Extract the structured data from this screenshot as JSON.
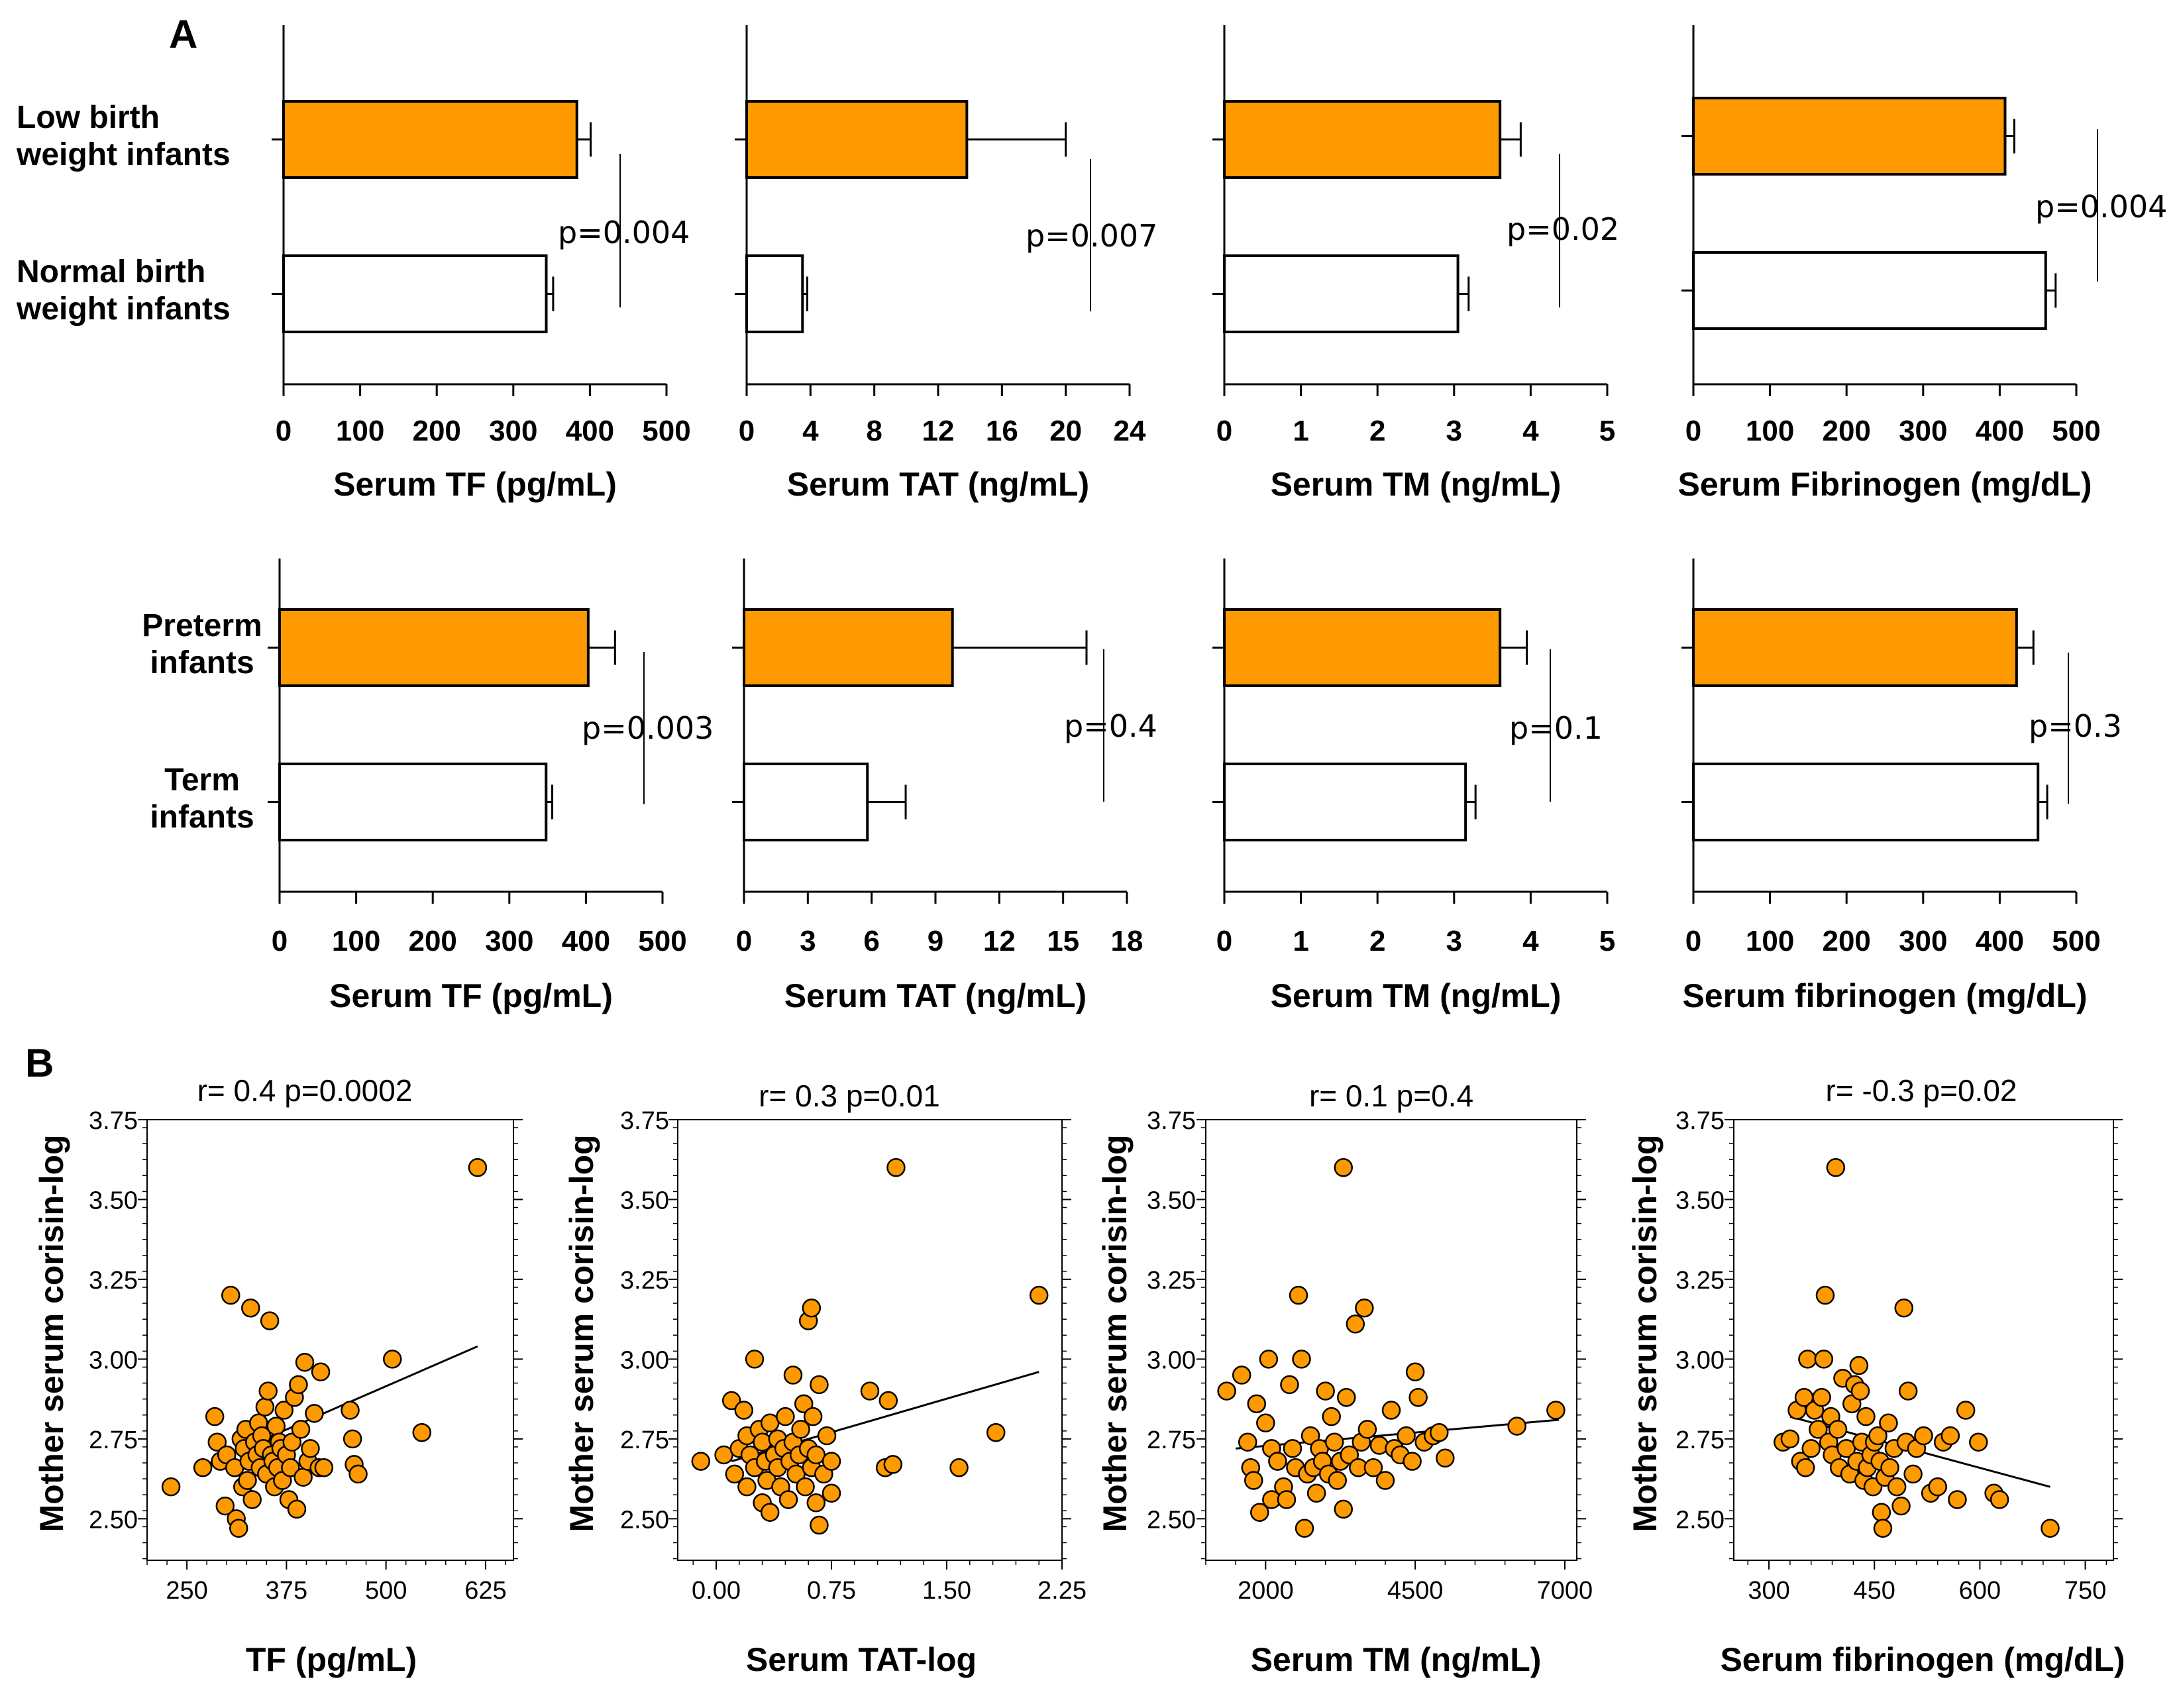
{
  "colors": {
    "orange": "#ff9900",
    "stroke": "#000000",
    "fill_white": "#ffffff"
  },
  "panels": {
    "a_label": "A",
    "b_label": "B"
  },
  "chart_data": [
    {
      "type": "bar",
      "orientation": "horizontal",
      "categories": [
        "Low birth\nweight infants",
        "Normal birth\nweight infants"
      ],
      "values": [
        383,
        343
      ],
      "errors": [
        18,
        9
      ],
      "xlabel": "Serum TF (pg/mL)",
      "xlim": [
        0,
        500
      ],
      "xticks": [
        0,
        100,
        200,
        300,
        400,
        500
      ],
      "ptext": "p=0.004"
    },
    {
      "type": "bar",
      "orientation": "horizontal",
      "categories": [
        "Low birth\nweight infants",
        "Normal birth\nweight infants"
      ],
      "values": [
        13.8,
        3.5
      ],
      "errors": [
        6.2,
        0.3
      ],
      "xlabel": "Serum TAT (ng/mL)",
      "xlim": [
        0,
        24
      ],
      "xticks": [
        0,
        4,
        8,
        12,
        16,
        20,
        24
      ],
      "ptext": "p=0.007"
    },
    {
      "type": "bar",
      "orientation": "horizontal",
      "categories": [
        "Low birth\nweight infants",
        "Normal birth\nweight infants"
      ],
      "values": [
        3.6,
        3.05
      ],
      "errors": [
        0.27,
        0.14
      ],
      "xlabel": "Serum TM (ng/mL)",
      "xlim": [
        0,
        5
      ],
      "xticks": [
        0,
        1,
        2,
        3,
        4,
        5
      ],
      "ptext": "p=0.02"
    },
    {
      "type": "bar",
      "orientation": "horizontal",
      "categories": [
        "Low birth\nweight infants",
        "Normal birth\nweight infants"
      ],
      "values": [
        407,
        460
      ],
      "errors": [
        12,
        13
      ],
      "xlabel": "Serum Fibrinogen (mg/dL)",
      "xlim": [
        0,
        500
      ],
      "xticks": [
        0,
        100,
        200,
        300,
        400,
        500
      ],
      "ptext": "p=0.004"
    },
    {
      "type": "bar",
      "orientation": "horizontal",
      "categories": [
        "Preterm\ninfants",
        "Term\ninfants"
      ],
      "values": [
        403,
        348
      ],
      "errors": [
        35,
        8
      ],
      "xlabel": "Serum TF (pg/mL)",
      "xlim": [
        0,
        500
      ],
      "xticks": [
        0,
        100,
        200,
        300,
        400,
        500
      ],
      "ptext": "p=0.003"
    },
    {
      "type": "bar",
      "orientation": "horizontal",
      "categories": [
        "Preterm\ninfants",
        "Term\ninfants"
      ],
      "values": [
        9.8,
        5.8
      ],
      "errors": [
        6.3,
        1.8
      ],
      "xlabel": "Serum TAT (ng/mL)",
      "xlim": [
        0,
        18
      ],
      "xticks": [
        0,
        3,
        6,
        9,
        12,
        15,
        18
      ],
      "ptext": "p=0.4"
    },
    {
      "type": "bar",
      "orientation": "horizontal",
      "categories": [
        "Preterm\ninfants",
        "Term\ninfants"
      ],
      "values": [
        3.6,
        3.15
      ],
      "errors": [
        0.35,
        0.13
      ],
      "xlabel": "Serum TM (ng/mL)",
      "xlim": [
        0,
        5
      ],
      "xticks": [
        0,
        1,
        2,
        3,
        4,
        5
      ],
      "ptext": "p=0.1"
    },
    {
      "type": "bar",
      "orientation": "horizontal",
      "categories": [
        "Preterm\ninfants",
        "Term\ninfants"
      ],
      "values": [
        422,
        450
      ],
      "errors": [
        22,
        12
      ],
      "xlabel": "Serum fibrinogen (mg/dL)",
      "xlim": [
        0,
        500
      ],
      "xticks": [
        0,
        100,
        200,
        300,
        400,
        500
      ],
      "ptext": "p=0.3"
    },
    {
      "type": "scatter",
      "title": "r= 0.4  p=0.0002",
      "xlabel": "TF (pg/mL)",
      "ylabel": "Mother serum corisin-log",
      "xlim": [
        200,
        660
      ],
      "ylim": [
        2.37,
        3.75
      ],
      "xticks": [
        250,
        375,
        500,
        625
      ],
      "xticklabels": [
        "250",
        "375",
        "500",
        "625"
      ],
      "yticks": [
        2.5,
        2.75,
        3.0,
        3.25,
        3.5,
        3.75
      ],
      "yticklabels": [
        "2.50",
        "2.75",
        "3.00",
        "3.25",
        "3.50",
        "3.75"
      ],
      "trend": [
        [
          265,
          2.66
        ],
        [
          615,
          3.04
        ]
      ],
      "points": [
        [
          230,
          2.6
        ],
        [
          270,
          2.66
        ],
        [
          285,
          2.82
        ],
        [
          288,
          2.74
        ],
        [
          292,
          2.68
        ],
        [
          298,
          2.54
        ],
        [
          300,
          2.7
        ],
        [
          305,
          3.2
        ],
        [
          310,
          2.66
        ],
        [
          312,
          2.5
        ],
        [
          315,
          2.47
        ],
        [
          318,
          2.75
        ],
        [
          320,
          2.6
        ],
        [
          322,
          2.72
        ],
        [
          324,
          2.78
        ],
        [
          326,
          2.62
        ],
        [
          328,
          2.68
        ],
        [
          330,
          3.16
        ],
        [
          332,
          2.56
        ],
        [
          335,
          2.74
        ],
        [
          338,
          2.7
        ],
        [
          340,
          2.8
        ],
        [
          342,
          2.66
        ],
        [
          344,
          2.76
        ],
        [
          346,
          2.72
        ],
        [
          348,
          2.85
        ],
        [
          350,
          2.64
        ],
        [
          352,
          2.9
        ],
        [
          354,
          3.12
        ],
        [
          356,
          2.7
        ],
        [
          358,
          2.68
        ],
        [
          360,
          2.6
        ],
        [
          362,
          2.79
        ],
        [
          364,
          2.66
        ],
        [
          366,
          2.74
        ],
        [
          368,
          2.72
        ],
        [
          370,
          2.62
        ],
        [
          372,
          2.84
        ],
        [
          375,
          2.7
        ],
        [
          378,
          2.56
        ],
        [
          380,
          2.66
        ],
        [
          382,
          2.74
        ],
        [
          385,
          2.88
        ],
        [
          388,
          2.53
        ],
        [
          390,
          2.92
        ],
        [
          393,
          2.78
        ],
        [
          396,
          2.63
        ],
        [
          398,
          2.99
        ],
        [
          402,
          2.68
        ],
        [
          405,
          2.72
        ],
        [
          410,
          2.83
        ],
        [
          416,
          2.66
        ],
        [
          418,
          2.96
        ],
        [
          422,
          2.66
        ],
        [
          455,
          2.84
        ],
        [
          458,
          2.75
        ],
        [
          460,
          2.67
        ],
        [
          465,
          2.64
        ],
        [
          508,
          3.0
        ],
        [
          545,
          2.77
        ],
        [
          615,
          3.6
        ]
      ]
    },
    {
      "type": "scatter",
      "title": "r= 0.3  p=0.01",
      "xlabel": "Serum TAT-log",
      "ylabel": "Mother serum corisin-log",
      "xlim": [
        -0.25,
        2.25
      ],
      "ylim": [
        2.37,
        3.75
      ],
      "xticks": [
        0.0,
        0.75,
        1.5,
        2.25
      ],
      "xticklabels": [
        "0.00",
        "0.75",
        "1.50",
        "2.25"
      ],
      "yticks": [
        2.5,
        2.75,
        3.0,
        3.25,
        3.5,
        3.75
      ],
      "yticklabels": [
        "2.50",
        "2.75",
        "3.00",
        "3.25",
        "3.50",
        "3.75"
      ],
      "trend": [
        [
          0.1,
          2.68
        ],
        [
          2.1,
          2.96
        ]
      ],
      "points": [
        [
          -0.1,
          2.68
        ],
        [
          0.05,
          2.7
        ],
        [
          0.1,
          2.87
        ],
        [
          0.12,
          2.64
        ],
        [
          0.15,
          2.72
        ],
        [
          0.18,
          2.84
        ],
        [
          0.2,
          2.76
        ],
        [
          0.2,
          2.6
        ],
        [
          0.22,
          2.7
        ],
        [
          0.25,
          3.0
        ],
        [
          0.25,
          2.66
        ],
        [
          0.28,
          2.78
        ],
        [
          0.3,
          2.55
        ],
        [
          0.3,
          2.74
        ],
        [
          0.32,
          2.68
        ],
        [
          0.33,
          2.62
        ],
        [
          0.35,
          2.52
        ],
        [
          0.35,
          2.8
        ],
        [
          0.38,
          2.7
        ],
        [
          0.4,
          2.66
        ],
        [
          0.4,
          2.75
        ],
        [
          0.42,
          2.6
        ],
        [
          0.44,
          2.72
        ],
        [
          0.45,
          2.82
        ],
        [
          0.47,
          2.56
        ],
        [
          0.48,
          2.68
        ],
        [
          0.5,
          2.74
        ],
        [
          0.5,
          2.95
        ],
        [
          0.52,
          2.64
        ],
        [
          0.54,
          2.7
        ],
        [
          0.55,
          2.78
        ],
        [
          0.57,
          2.86
        ],
        [
          0.58,
          2.6
        ],
        [
          0.6,
          3.12
        ],
        [
          0.6,
          2.72
        ],
        [
          0.62,
          2.66
        ],
        [
          0.62,
          3.16
        ],
        [
          0.63,
          2.82
        ],
        [
          0.65,
          2.55
        ],
        [
          0.65,
          2.7
        ],
        [
          0.67,
          2.92
        ],
        [
          0.67,
          2.48
        ],
        [
          0.7,
          2.64
        ],
        [
          0.72,
          2.76
        ],
        [
          0.75,
          2.68
        ],
        [
          0.75,
          2.58
        ],
        [
          1.0,
          2.9
        ],
        [
          1.1,
          2.66
        ],
        [
          1.12,
          2.87
        ],
        [
          1.15,
          2.67
        ],
        [
          1.17,
          3.6
        ],
        [
          1.58,
          2.66
        ],
        [
          1.82,
          2.77
        ],
        [
          2.1,
          3.2
        ]
      ]
    },
    {
      "type": "scatter",
      "title": "r= 0.1  p=0.4",
      "xlabel": "Serum TM (ng/mL)",
      "ylabel": "Mother serum corisin-log",
      "xlim": [
        1000,
        7200
      ],
      "ylim": [
        2.37,
        3.75
      ],
      "xticks": [
        2000,
        4500,
        7000
      ],
      "xticklabels": [
        "2000",
        "4500",
        "7000"
      ],
      "yticks": [
        2.5,
        2.75,
        3.0,
        3.25,
        3.5,
        3.75
      ],
      "yticklabels": [
        "2.50",
        "2.75",
        "3.00",
        "3.25",
        "3.50",
        "3.75"
      ],
      "trend": [
        [
          1500,
          2.72
        ],
        [
          6900,
          2.81
        ]
      ],
      "points": [
        [
          1350,
          2.9
        ],
        [
          1600,
          2.95
        ],
        [
          1700,
          2.74
        ],
        [
          1750,
          2.66
        ],
        [
          1800,
          2.62
        ],
        [
          1850,
          2.86
        ],
        [
          1900,
          2.52
        ],
        [
          2000,
          2.8
        ],
        [
          2050,
          3.0
        ],
        [
          2100,
          2.72
        ],
        [
          2100,
          2.56
        ],
        [
          2200,
          2.68
        ],
        [
          2300,
          2.6
        ],
        [
          2350,
          2.56
        ],
        [
          2400,
          2.92
        ],
        [
          2450,
          2.72
        ],
        [
          2500,
          2.66
        ],
        [
          2550,
          3.2
        ],
        [
          2600,
          3.0
        ],
        [
          2650,
          2.47
        ],
        [
          2700,
          2.64
        ],
        [
          2750,
          2.76
        ],
        [
          2800,
          2.66
        ],
        [
          2850,
          2.58
        ],
        [
          2900,
          2.72
        ],
        [
          2950,
          2.68
        ],
        [
          3000,
          2.9
        ],
        [
          3050,
          2.64
        ],
        [
          3100,
          2.82
        ],
        [
          3150,
          2.74
        ],
        [
          3200,
          2.62
        ],
        [
          3250,
          2.68
        ],
        [
          3300,
          2.53
        ],
        [
          3300,
          3.6
        ],
        [
          3350,
          2.88
        ],
        [
          3400,
          2.7
        ],
        [
          3500,
          3.11
        ],
        [
          3550,
          2.66
        ],
        [
          3600,
          2.74
        ],
        [
          3650,
          3.16
        ],
        [
          3700,
          2.78
        ],
        [
          3800,
          2.66
        ],
        [
          3900,
          2.73
        ],
        [
          4000,
          2.62
        ],
        [
          4100,
          2.84
        ],
        [
          4150,
          2.72
        ],
        [
          4250,
          2.7
        ],
        [
          4350,
          2.76
        ],
        [
          4450,
          2.68
        ],
        [
          4500,
          2.96
        ],
        [
          4550,
          2.88
        ],
        [
          4650,
          2.74
        ],
        [
          4800,
          2.76
        ],
        [
          4900,
          2.77
        ],
        [
          5000,
          2.69
        ],
        [
          6200,
          2.79
        ],
        [
          6850,
          2.84
        ]
      ]
    },
    {
      "type": "scatter",
      "title": "r= -0.3  p=0.02",
      "xlabel": "Serum fibrinogen (mg/dL)",
      "ylabel": "Mother serum corisin-log",
      "xlim": [
        250,
        790
      ],
      "ylim": [
        2.37,
        3.75
      ],
      "xticks": [
        300,
        450,
        600,
        750
      ],
      "xticklabels": [
        "300",
        "450",
        "600",
        "750"
      ],
      "yticks": [
        2.5,
        2.75,
        3.0,
        3.25,
        3.5,
        3.75
      ],
      "yticklabels": [
        "2.50",
        "2.75",
        "3.00",
        "3.25",
        "3.50",
        "3.75"
      ],
      "trend": [
        [
          330,
          2.82
        ],
        [
          700,
          2.6
        ]
      ],
      "points": [
        [
          320,
          2.74
        ],
        [
          330,
          2.75
        ],
        [
          340,
          2.84
        ],
        [
          345,
          2.68
        ],
        [
          350,
          2.88
        ],
        [
          352,
          2.66
        ],
        [
          355,
          3.0
        ],
        [
          360,
          2.72
        ],
        [
          365,
          2.84
        ],
        [
          370,
          2.78
        ],
        [
          375,
          2.88
        ],
        [
          378,
          3.0
        ],
        [
          380,
          3.2
        ],
        [
          385,
          2.74
        ],
        [
          388,
          2.82
        ],
        [
          390,
          2.7
        ],
        [
          395,
          3.6
        ],
        [
          398,
          2.78
        ],
        [
          400,
          2.66
        ],
        [
          405,
          2.94
        ],
        [
          410,
          2.72
        ],
        [
          415,
          2.64
        ],
        [
          418,
          2.86
        ],
        [
          422,
          2.92
        ],
        [
          425,
          2.68
        ],
        [
          428,
          2.98
        ],
        [
          430,
          2.9
        ],
        [
          432,
          2.74
        ],
        [
          435,
          2.62
        ],
        [
          438,
          2.82
        ],
        [
          440,
          2.66
        ],
        [
          445,
          2.7
        ],
        [
          448,
          2.6
        ],
        [
          450,
          2.74
        ],
        [
          455,
          2.76
        ],
        [
          458,
          2.68
        ],
        [
          460,
          2.52
        ],
        [
          462,
          2.47
        ],
        [
          465,
          2.63
        ],
        [
          470,
          2.8
        ],
        [
          472,
          2.66
        ],
        [
          478,
          2.72
        ],
        [
          482,
          2.6
        ],
        [
          488,
          2.54
        ],
        [
          492,
          3.16
        ],
        [
          495,
          2.74
        ],
        [
          498,
          2.9
        ],
        [
          505,
          2.64
        ],
        [
          510,
          2.72
        ],
        [
          520,
          2.76
        ],
        [
          530,
          2.58
        ],
        [
          540,
          2.6
        ],
        [
          548,
          2.74
        ],
        [
          558,
          2.76
        ],
        [
          568,
          2.56
        ],
        [
          580,
          2.84
        ],
        [
          598,
          2.74
        ],
        [
          620,
          2.58
        ],
        [
          628,
          2.56
        ],
        [
          700,
          2.47
        ]
      ]
    }
  ]
}
